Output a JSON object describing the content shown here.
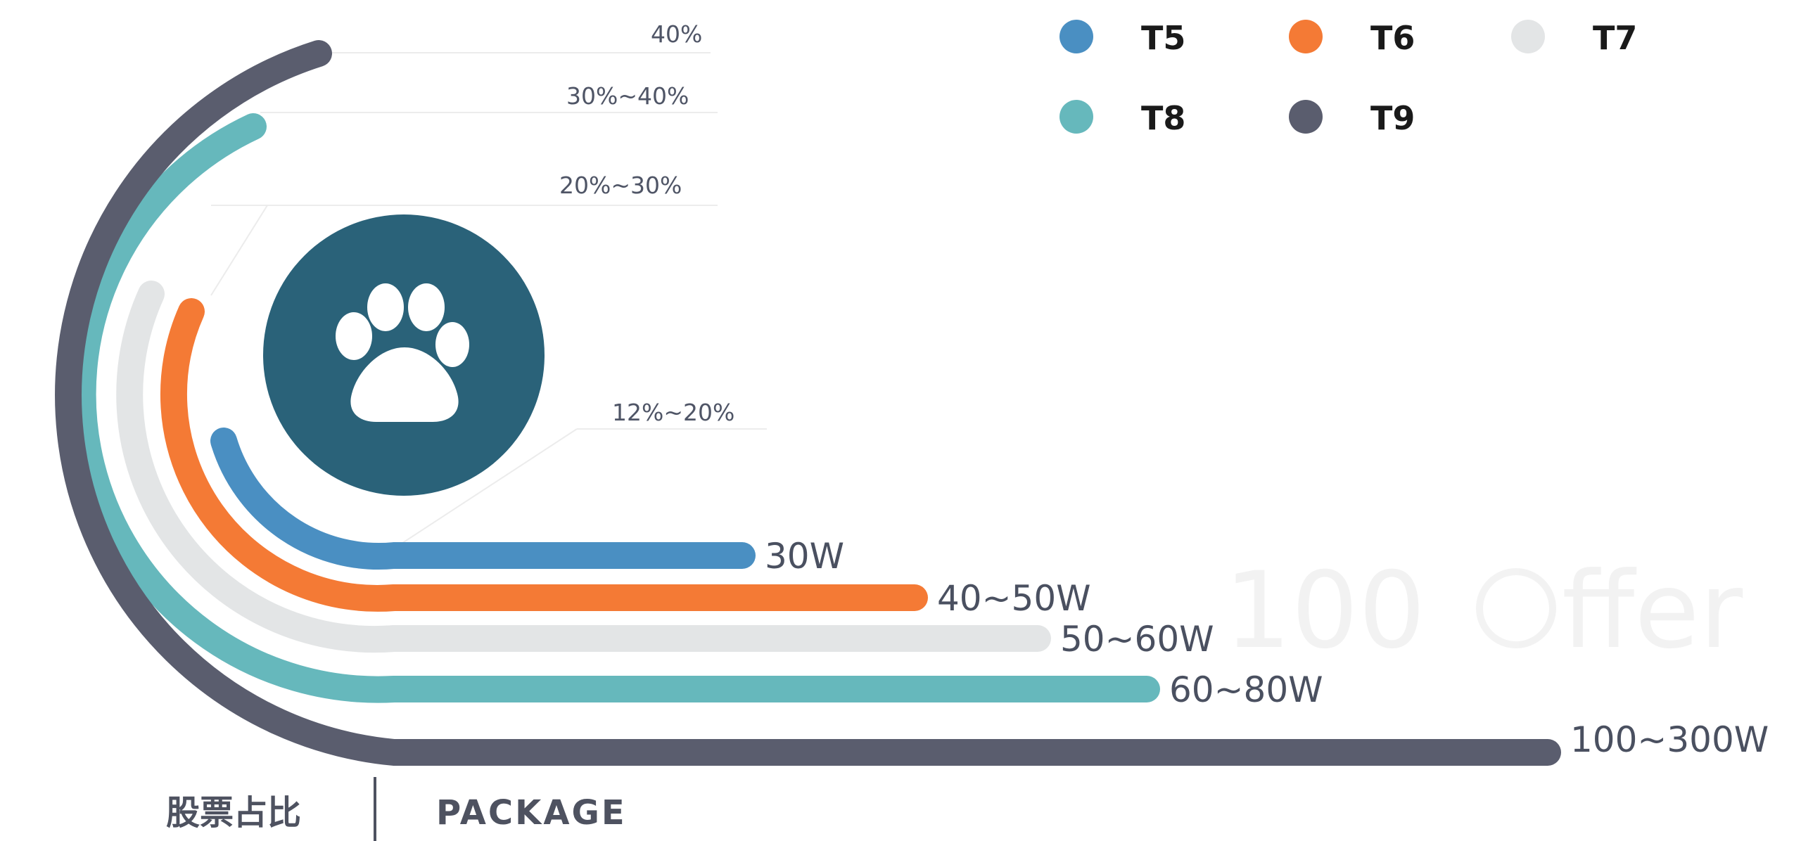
{
  "chart_data": {
    "type": "radial-bar",
    "title": "",
    "series": [
      {
        "name": "T5",
        "color": "#4a8fc2",
        "package": "30W",
        "stock_ratio": "12%~20%"
      },
      {
        "name": "T6",
        "color": "#f47a35",
        "package": "40~50W",
        "stock_ratio": "20%~30%"
      },
      {
        "name": "T7",
        "color": "#e3e5e6",
        "package": "50~60W",
        "stock_ratio": ""
      },
      {
        "name": "T8",
        "color": "#66b8bc",
        "package": "60~80W",
        "stock_ratio": "30%~40%"
      },
      {
        "name": "T9",
        "color": "#5a5d6e",
        "package": "100~300W",
        "stock_ratio": "40%"
      }
    ],
    "axis_labels": {
      "stock": "股票占比",
      "package": "PACKAGE"
    },
    "legend_position": "top-right",
    "center_icon": "paw-icon",
    "center_color": "#2a6279",
    "watermark": "100 offer"
  }
}
